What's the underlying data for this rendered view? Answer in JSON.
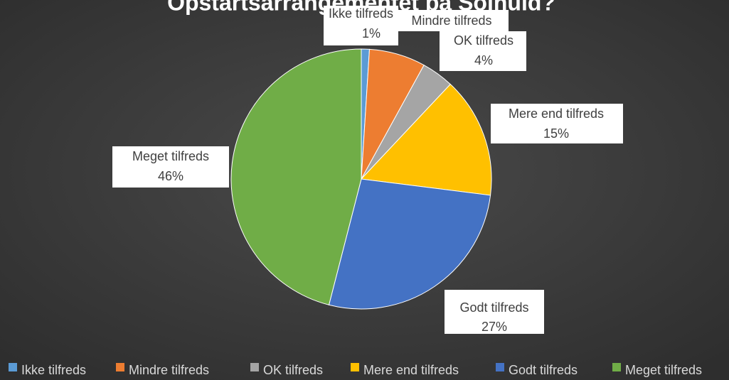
{
  "chart_data": {
    "type": "pie",
    "title": "Opstartsarrangementet på Solhuld?",
    "categories": [
      "Ikke tilfreds",
      "Mindre tilfreds",
      "OK tilfreds",
      "Mere end tilfreds",
      "Godt tilfreds",
      "Meget tilfreds"
    ],
    "values": [
      1,
      7,
      4,
      15,
      27,
      46
    ],
    "value_labels": [
      "1%",
      null,
      "4%",
      "15%",
      "27%",
      "46%"
    ],
    "colors": [
      "#5b9bd5",
      "#ed7d31",
      "#a5a5a5",
      "#ffc000",
      "#4472c4",
      "#70ad47"
    ],
    "legend": "bottom"
  }
}
